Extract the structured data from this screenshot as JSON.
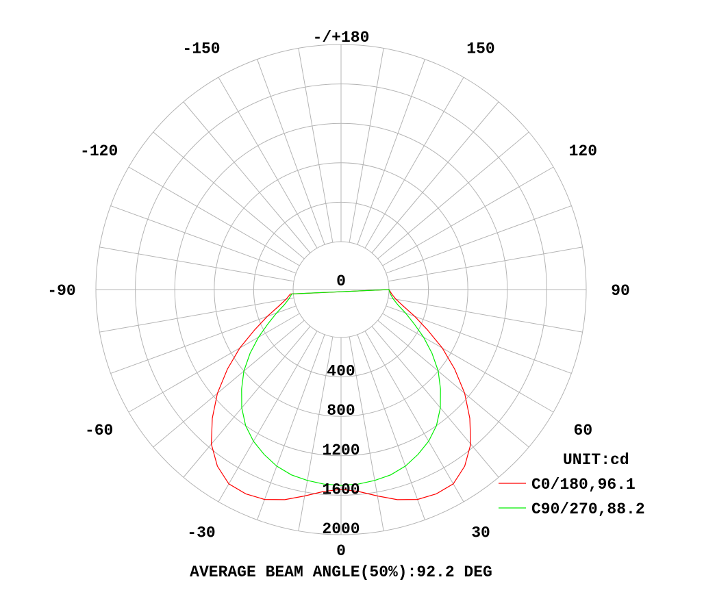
{
  "chart_data": {
    "type": "polar",
    "angle_labels": [
      {
        "angle": 180,
        "text": "-/+180"
      },
      {
        "angle": -150,
        "text": "-150"
      },
      {
        "angle": 150,
        "text": "150"
      },
      {
        "angle": -120,
        "text": "-120"
      },
      {
        "angle": 120,
        "text": "120"
      },
      {
        "angle": -90,
        "text": "-90"
      },
      {
        "angle": 90,
        "text": "90"
      },
      {
        "angle": -60,
        "text": "-60"
      },
      {
        "angle": 60,
        "text": "60"
      },
      {
        "angle": -30,
        "text": "-30"
      },
      {
        "angle": 30,
        "text": "30"
      },
      {
        "angle": 0,
        "text": "0"
      }
    ],
    "radial_ticks": [
      {
        "value": 0,
        "text": "0"
      },
      {
        "value": 400,
        "text": "400"
      },
      {
        "value": 800,
        "text": "800"
      },
      {
        "value": 1200,
        "text": "1200"
      },
      {
        "value": 1600,
        "text": "1600"
      },
      {
        "value": 2000,
        "text": "2000"
      }
    ],
    "rmax": 2000,
    "grid_angle_step": 10,
    "grid_circles": [
      400,
      800,
      1200,
      1600,
      2000
    ],
    "unit_label": "UNIT:cd",
    "footer": "AVERAGE BEAM ANGLE(50%):92.2 DEG",
    "legend_position": "bottom-right",
    "series": [
      {
        "name": "C0/180,96.1",
        "color": "#ff0000",
        "angles": [
          0,
          5,
          10,
          15,
          20,
          25,
          30,
          35,
          40,
          45,
          50,
          55,
          60,
          65,
          70,
          75,
          80,
          85,
          90
        ],
        "values": [
          1540,
          1570,
          1640,
          1720,
          1780,
          1800,
          1790,
          1700,
          1560,
          1360,
          1150,
          920,
          700,
          480,
          310,
          170,
          80,
          30,
          0
        ]
      },
      {
        "name": "C90/270,88.2",
        "color": "#00ee00",
        "angles": [
          0,
          5,
          10,
          15,
          20,
          25,
          30,
          35,
          40,
          45,
          50,
          55,
          60,
          65,
          70,
          75,
          80,
          85,
          90
        ],
        "values": [
          1500,
          1495,
          1480,
          1460,
          1420,
          1360,
          1290,
          1200,
          1080,
          940,
          800,
          640,
          480,
          330,
          210,
          110,
          50,
          15,
          0
        ]
      }
    ]
  }
}
